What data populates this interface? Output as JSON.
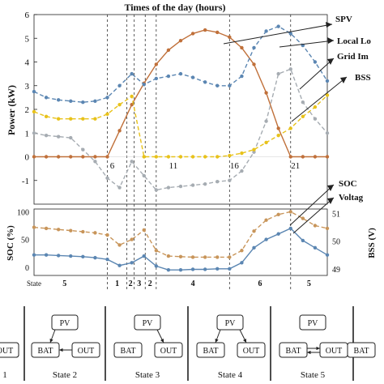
{
  "figure": {
    "title": "Times of the day (hours)",
    "state_row_label": "State",
    "state_row_numbers": [
      "5",
      "1",
      "2",
      "3",
      "2",
      "4",
      "6",
      "5"
    ]
  },
  "chart_data": [
    {
      "type": "line",
      "ylabel": "Power (kW)",
      "xlabel": "",
      "ylim": [
        -2,
        6
      ],
      "yticks": [
        "6",
        "5",
        "4",
        "3",
        "2",
        "1",
        "0",
        "-1"
      ],
      "xtick_labels": [
        "6",
        "11",
        "16",
        "21"
      ],
      "state_boundaries_hours": [
        6,
        7.6,
        8.2,
        9.1,
        10,
        16,
        21
      ],
      "x": [
        0,
        1,
        2,
        3,
        4,
        5,
        6,
        7,
        8,
        9,
        10,
        11,
        12,
        13,
        14,
        15,
        16,
        17,
        18,
        19,
        20,
        21,
        22,
        23,
        24
      ],
      "series": [
        {
          "name": "SPV",
          "color": "#c0703a",
          "values": [
            0,
            0,
            0,
            0,
            0,
            0,
            0,
            1.1,
            2.2,
            3.1,
            3.9,
            4.5,
            4.9,
            5.2,
            5.35,
            5.25,
            5.05,
            4.6,
            3.9,
            2.7,
            1.2,
            0,
            0,
            0,
            0
          ]
        },
        {
          "name": "Local Lo",
          "color": "#5b86b2",
          "values": [
            2.75,
            2.5,
            2.4,
            2.35,
            2.3,
            2.35,
            2.5,
            3.0,
            3.5,
            3.05,
            3.3,
            3.4,
            3.5,
            3.35,
            3.15,
            3.0,
            3.0,
            3.4,
            4.6,
            5.3,
            5.5,
            5.2,
            4.7,
            4.0,
            3.2
          ]
        },
        {
          "name": "Grid Im",
          "color": "#a6acb2",
          "values": [
            1.0,
            0.9,
            0.85,
            0.8,
            0.3,
            -0.2,
            -0.9,
            -1.3,
            -0.2,
            -0.8,
            -1.4,
            -1.3,
            -1.25,
            -1.2,
            -1.15,
            -1.05,
            -1.0,
            -0.6,
            0.2,
            1.5,
            3.5,
            3.7,
            2.3,
            1.6,
            1.0
          ]
        },
        {
          "name": "BSS",
          "color": "#e8c21a",
          "values": [
            1.9,
            1.7,
            1.6,
            1.6,
            1.6,
            1.6,
            1.8,
            2.2,
            2.55,
            0,
            0,
            0,
            0,
            0,
            0,
            0,
            0.05,
            0.15,
            0.3,
            0.6,
            0.9,
            1.2,
            1.7,
            2.1,
            2.6
          ]
        }
      ]
    },
    {
      "type": "line",
      "ylabel": "SOC (%)",
      "y2label": "BSS (V)",
      "ylim": [
        -15,
        105
      ],
      "yticks": [
        "100",
        "50",
        "0"
      ],
      "y2ticks": [
        "51",
        "50",
        "49"
      ],
      "x": [
        0,
        1,
        2,
        3,
        4,
        5,
        6,
        7,
        8,
        9,
        10,
        11,
        12,
        13,
        14,
        15,
        16,
        17,
        18,
        19,
        20,
        21,
        22,
        23,
        24
      ],
      "series": [
        {
          "name": "SOC",
          "color": "#5b86b2",
          "values": [
            22,
            22,
            21,
            20,
            19,
            17,
            14,
            3,
            8,
            20,
            2,
            -5,
            -5,
            -4,
            -4,
            -3,
            -3,
            8,
            35,
            50,
            60,
            70,
            48,
            35,
            22
          ]
        },
        {
          "name": "Voltag",
          "color": "#c8955a",
          "values": [
            72,
            70,
            68,
            66,
            64,
            62,
            58,
            40,
            50,
            67,
            30,
            20,
            19,
            18,
            18,
            18,
            18,
            30,
            65,
            85,
            95,
            100,
            88,
            75,
            70
          ]
        }
      ]
    }
  ],
  "state_diagram": {
    "panels": [
      {
        "title": "1",
        "pv": "",
        "bat": "",
        "out": "OUT"
      },
      {
        "title": "State 2",
        "pv": "PV",
        "bat": "BAT",
        "out": "OUT"
      },
      {
        "title": "State 3",
        "pv": "PV",
        "bat": "BAT",
        "out": "OUT"
      },
      {
        "title": "State 4",
        "pv": "PV",
        "bat": "BAT",
        "out": "OUT"
      },
      {
        "title": "State 5",
        "pv": "PV",
        "bat": "BAT",
        "out": "OUT"
      },
      {
        "title": "",
        "pv": "",
        "bat": "BAT",
        "out": ""
      }
    ]
  }
}
